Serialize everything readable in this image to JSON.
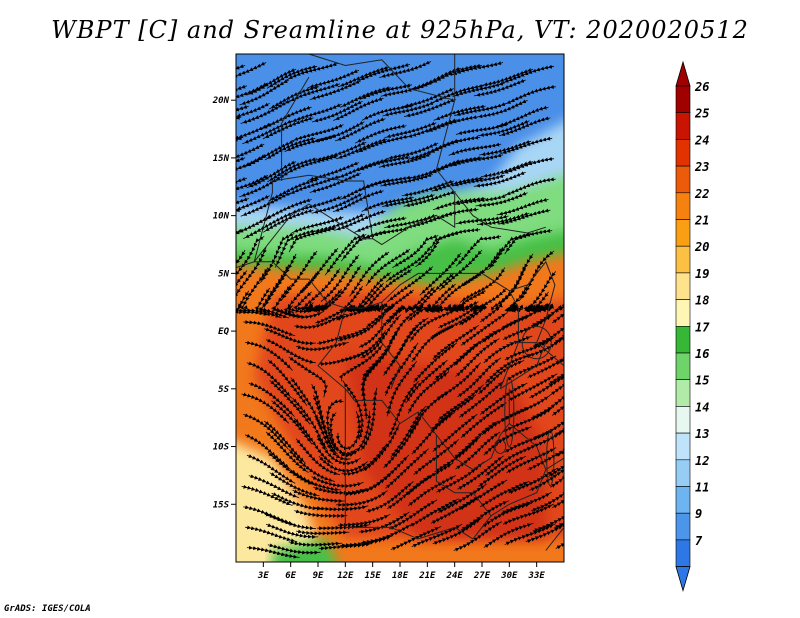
{
  "title": "WBPT [C] and Sreamline at 925hPa, VT: 2020020512",
  "credit": "GrADS: IGES/COLA",
  "map": {
    "lon_range": [
      0,
      36
    ],
    "lat_range": [
      -20,
      24
    ],
    "lat_ticks": [
      {
        "value": 20,
        "label": "20N"
      },
      {
        "value": 15,
        "label": "15N"
      },
      {
        "value": 10,
        "label": "10N"
      },
      {
        "value": 5,
        "label": "5N"
      },
      {
        "value": 0,
        "label": "EQ"
      },
      {
        "value": -5,
        "label": "5S"
      },
      {
        "value": -10,
        "label": "10S"
      },
      {
        "value": -15,
        "label": "15S"
      }
    ],
    "lon_ticks": [
      {
        "value": 3,
        "label": "3E"
      },
      {
        "value": 6,
        "label": "6E"
      },
      {
        "value": 9,
        "label": "9E"
      },
      {
        "value": 12,
        "label": "12E"
      },
      {
        "value": 15,
        "label": "15E"
      },
      {
        "value": 18,
        "label": "18E"
      },
      {
        "value": 21,
        "label": "21E"
      },
      {
        "value": 24,
        "label": "24E"
      },
      {
        "value": 27,
        "label": "27E"
      },
      {
        "value": 30,
        "label": "30E"
      },
      {
        "value": 33,
        "label": "33E"
      }
    ]
  },
  "colorbar": {
    "levels": [
      "26",
      "25",
      "24",
      "23",
      "22",
      "21",
      "20",
      "19",
      "18",
      "17",
      "16",
      "15",
      "14",
      "13",
      "12",
      "11",
      "9",
      "7"
    ],
    "colors": [
      "#a00000",
      "#c81400",
      "#e13200",
      "#ec5a0a",
      "#f5820f",
      "#fa9f14",
      "#fcc043",
      "#ffe28c",
      "#fff5b4",
      "#36b736",
      "#6ed46a",
      "#b0eba8",
      "#e6f8f0",
      "#bfe3fa",
      "#96cdf5",
      "#6eb4f0",
      "#4b96eb",
      "#2d78e6"
    ],
    "top_color": "#a00000",
    "bottom_color": "#2d78e6"
  },
  "colors": {
    "cold": "#4a8fe8",
    "cool": "#a8d6f5",
    "mild": "#7fdc7f",
    "green": "#46c046",
    "yellow": "#fde8a0",
    "orange": "#f2781e",
    "red": "#e2461e",
    "deepred": "#d23214"
  }
}
